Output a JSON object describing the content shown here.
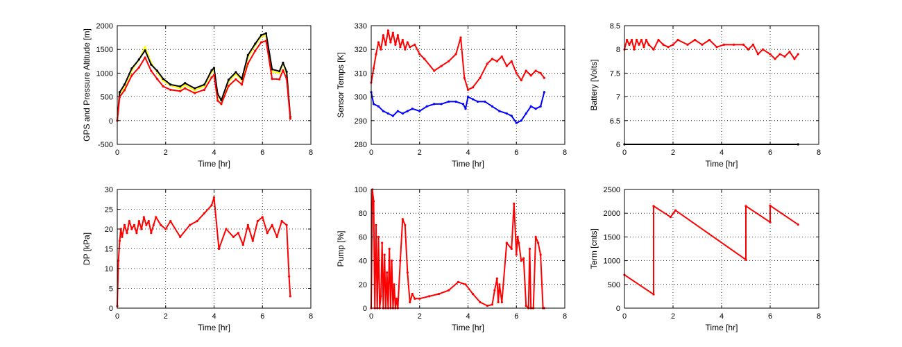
{
  "chart_data": [
    {
      "type": "line",
      "xlabel": "Time [hr]",
      "ylabel": "GPS and Pressure Altitude [m]",
      "xlim": [
        0,
        8
      ],
      "ylim": [
        -500,
        2000
      ],
      "xticks": [
        0,
        2,
        4,
        6,
        8
      ],
      "yticks": [
        -500,
        0,
        500,
        1000,
        1500,
        2000
      ],
      "grid": true,
      "series": [
        {
          "color": "#ffff00",
          "x": [
            0,
            0.1,
            0.3,
            0.6,
            0.9,
            1.15,
            1.4,
            1.65,
            1.9,
            2.2,
            2.6,
            2.8,
            3.2,
            3.6,
            3.9,
            4.0,
            4.15,
            4.3,
            4.6,
            4.9,
            5.15,
            5.4,
            5.7,
            5.95,
            6.15,
            6.4,
            6.7,
            6.85,
            7.0,
            7.15
          ],
          "y": [
            0,
            560,
            720,
            1060,
            1280,
            1550,
            1220,
            1020,
            840,
            740,
            680,
            750,
            640,
            730,
            1020,
            1080,
            520,
            420,
            820,
            980,
            850,
            1330,
            1590,
            1770,
            1790,
            1030,
            1000,
            1200,
            1000,
            60
          ]
        },
        {
          "color": "#000000",
          "x": [
            0,
            0.1,
            0.3,
            0.6,
            0.9,
            1.15,
            1.4,
            1.65,
            1.9,
            2.2,
            2.6,
            2.8,
            3.2,
            3.6,
            3.9,
            4.0,
            4.15,
            4.3,
            4.6,
            4.9,
            5.15,
            5.4,
            5.7,
            5.95,
            6.15,
            6.4,
            6.7,
            6.85,
            7.0,
            7.15
          ],
          "y": [
            0,
            600,
            760,
            1100,
            1290,
            1480,
            1180,
            1050,
            880,
            760,
            720,
            790,
            680,
            760,
            1060,
            1110,
            560,
            430,
            860,
            1020,
            880,
            1380,
            1620,
            1800,
            1840,
            1080,
            1040,
            1220,
            1030,
            80
          ]
        },
        {
          "color": "#ff0000",
          "x": [
            0,
            0.1,
            0.3,
            0.6,
            0.9,
            1.15,
            1.4,
            1.65,
            1.9,
            2.2,
            2.6,
            2.8,
            3.2,
            3.6,
            3.9,
            4.0,
            4.15,
            4.3,
            4.6,
            4.9,
            5.15,
            5.4,
            5.7,
            5.95,
            6.15,
            6.4,
            6.7,
            6.85,
            7.0,
            7.15
          ],
          "y": [
            0,
            500,
            640,
            950,
            1120,
            1330,
            1050,
            880,
            720,
            650,
            620,
            680,
            580,
            650,
            910,
            960,
            420,
            350,
            730,
            870,
            760,
            1200,
            1470,
            1650,
            1680,
            880,
            870,
            1060,
            880,
            40
          ]
        }
      ]
    },
    {
      "type": "line",
      "xlabel": "Time [hr]",
      "ylabel": "Sensor Temps [K]",
      "xlim": [
        0,
        8
      ],
      "ylim": [
        280,
        330
      ],
      "xticks": [
        0,
        2,
        4,
        6,
        8
      ],
      "yticks": [
        280,
        290,
        300,
        310,
        320,
        330
      ],
      "grid": true,
      "series": [
        {
          "color": "#ff0000",
          "x": [
            0,
            0.1,
            0.2,
            0.3,
            0.4,
            0.5,
            0.6,
            0.7,
            0.8,
            0.9,
            1.0,
            1.1,
            1.2,
            1.3,
            1.4,
            1.5,
            1.6,
            1.8,
            2.0,
            2.2,
            2.6,
            2.9,
            3.2,
            3.5,
            3.7,
            3.85,
            4.0,
            4.2,
            4.5,
            4.8,
            5.0,
            5.2,
            5.4,
            5.6,
            5.8,
            6.0,
            6.2,
            6.4,
            6.6,
            6.8,
            7.0,
            7.15
          ],
          "y": [
            306,
            312,
            318,
            323,
            320,
            326,
            322,
            328,
            323,
            327,
            322,
            326,
            321,
            324,
            320,
            323,
            321,
            322,
            318,
            316,
            311,
            313,
            315,
            318,
            325,
            308,
            303,
            304,
            308,
            314,
            316,
            315,
            317,
            313,
            315,
            310,
            307,
            311,
            309,
            311,
            310,
            308
          ]
        },
        {
          "color": "#0000ff",
          "x": [
            0,
            0.1,
            0.3,
            0.5,
            0.7,
            0.9,
            1.1,
            1.3,
            1.5,
            1.7,
            2.0,
            2.3,
            2.6,
            2.9,
            3.2,
            3.5,
            3.8,
            3.9,
            4.0,
            4.2,
            4.4,
            4.7,
            5.0,
            5.3,
            5.6,
            5.8,
            6.0,
            6.2,
            6.4,
            6.6,
            6.8,
            7.0,
            7.15
          ],
          "y": [
            302,
            297,
            296,
            294,
            293,
            292,
            294,
            293,
            294,
            295,
            294,
            296,
            297,
            297,
            298,
            298,
            297,
            295,
            300,
            299,
            298,
            298,
            296,
            294,
            293,
            292,
            289,
            290,
            293,
            296,
            295,
            296,
            302
          ]
        }
      ]
    },
    {
      "type": "line",
      "xlabel": "Time [hr]",
      "ylabel": "Battery [Volts]",
      "xlim": [
        0,
        8
      ],
      "ylim": [
        6,
        8.5
      ],
      "xticks": [
        0,
        2,
        4,
        6,
        8
      ],
      "yticks": [
        6,
        6.5,
        7,
        7.5,
        8,
        8.5
      ],
      "grid": true,
      "series": [
        {
          "color": "#ff0000",
          "x": [
            0,
            0.1,
            0.2,
            0.3,
            0.4,
            0.5,
            0.6,
            0.7,
            0.8,
            0.9,
            1.0,
            1.2,
            1.4,
            1.6,
            1.8,
            2.0,
            2.2,
            2.6,
            2.9,
            3.2,
            3.5,
            3.8,
            4.1,
            4.5,
            4.9,
            5.1,
            5.3,
            5.5,
            5.7,
            6.0,
            6.2,
            6.4,
            6.6,
            6.8,
            7.0,
            7.15
          ],
          "y": [
            8.0,
            8.2,
            8.1,
            8.2,
            8.0,
            8.2,
            8.1,
            8.2,
            8.05,
            8.2,
            8.1,
            8.0,
            8.2,
            8.1,
            8.05,
            8.1,
            8.2,
            8.1,
            8.2,
            8.1,
            8.2,
            8.05,
            8.1,
            8.1,
            8.1,
            8.0,
            8.1,
            7.9,
            8.0,
            7.9,
            7.8,
            7.9,
            7.85,
            7.95,
            7.8,
            7.9
          ]
        },
        {
          "color": "#000000",
          "x": [
            0,
            7.15
          ],
          "y": [
            6.0,
            6.0
          ]
        }
      ]
    },
    {
      "type": "line",
      "xlabel": "Time [hr]",
      "ylabel": "DP [kPa]",
      "xlim": [
        0,
        8
      ],
      "ylim": [
        0,
        30
      ],
      "xticks": [
        0,
        2,
        4,
        6,
        8
      ],
      "yticks": [
        0,
        5,
        10,
        15,
        20,
        25,
        30
      ],
      "grid": true,
      "series": [
        {
          "color": "#ff0000",
          "x": [
            0,
            0.05,
            0.1,
            0.15,
            0.2,
            0.3,
            0.4,
            0.5,
            0.6,
            0.7,
            0.8,
            0.9,
            1.0,
            1.1,
            1.2,
            1.3,
            1.4,
            1.5,
            1.6,
            1.8,
            2.0,
            2.2,
            2.6,
            3.0,
            3.3,
            3.6,
            3.9,
            4.0,
            4.2,
            4.5,
            4.8,
            5.0,
            5.2,
            5.4,
            5.6,
            5.8,
            6.0,
            6.2,
            6.4,
            6.6,
            6.8,
            7.0,
            7.1,
            7.15
          ],
          "y": [
            0.5,
            12,
            17,
            20,
            18,
            21,
            19,
            22,
            20,
            21,
            19,
            22,
            20,
            23,
            21,
            22,
            19,
            21,
            23,
            21,
            20,
            22,
            18,
            21,
            22,
            24,
            26,
            28,
            15,
            20,
            18,
            19,
            16,
            21,
            17,
            22,
            23,
            19,
            21,
            18,
            22,
            21,
            8,
            3
          ]
        }
      ]
    },
    {
      "type": "line",
      "xlabel": "Time [hr]",
      "ylabel": "Pump [%]",
      "xlim": [
        0,
        8
      ],
      "ylim": [
        0,
        100
      ],
      "xticks": [
        0,
        2,
        4,
        6,
        8
      ],
      "yticks": [
        0,
        20,
        40,
        60,
        80,
        100
      ],
      "grid": true,
      "series": [
        {
          "color": "#ff0000",
          "x": [
            0,
            0.05,
            0.1,
            0.15,
            0.2,
            0.25,
            0.3,
            0.35,
            0.4,
            0.45,
            0.5,
            0.55,
            0.6,
            0.65,
            0.7,
            0.75,
            0.8,
            0.85,
            0.9,
            0.95,
            1.0,
            1.05,
            1.1,
            1.2,
            1.3,
            1.4,
            1.5,
            1.6,
            1.7,
            1.8,
            2.0,
            2.4,
            2.8,
            3.2,
            3.6,
            3.9,
            4.2,
            4.5,
            4.8,
            5.0,
            5.1,
            5.2,
            5.25,
            5.3,
            5.4,
            5.6,
            5.8,
            5.9,
            6.0,
            6.05,
            6.1,
            6.2,
            6.3,
            6.4,
            6.5,
            6.55,
            6.6,
            6.7,
            6.8,
            6.9,
            7.0,
            7.1,
            7.15
          ],
          "y": [
            0,
            100,
            90,
            0,
            70,
            0,
            60,
            0,
            10,
            55,
            0,
            45,
            0,
            30,
            0,
            50,
            0,
            40,
            0,
            20,
            0,
            8,
            0,
            40,
            75,
            70,
            30,
            5,
            12,
            8,
            8,
            10,
            12,
            15,
            22,
            20,
            12,
            5,
            2,
            3,
            15,
            25,
            5,
            20,
            5,
            55,
            50,
            88,
            45,
            60,
            55,
            40,
            42,
            2,
            0,
            50,
            0,
            0,
            60,
            55,
            45,
            0,
            0
          ]
        }
      ]
    },
    {
      "type": "line",
      "xlabel": "Time [hr]",
      "ylabel": "Term [cnts]",
      "xlim": [
        0,
        8
      ],
      "ylim": [
        0,
        2500
      ],
      "xticks": [
        0,
        2,
        4,
        6,
        8
      ],
      "yticks": [
        0,
        500,
        1000,
        1500,
        2000,
        2500
      ],
      "grid": true,
      "series": [
        {
          "color": "#ff0000",
          "x": [
            0,
            1.2,
            1.2,
            1.9,
            2.1,
            5.0,
            5.0,
            6.0,
            6.0,
            7.15
          ],
          "y": [
            700,
            290,
            2150,
            1920,
            2060,
            1020,
            2150,
            1810,
            2160,
            1760
          ]
        }
      ]
    }
  ]
}
